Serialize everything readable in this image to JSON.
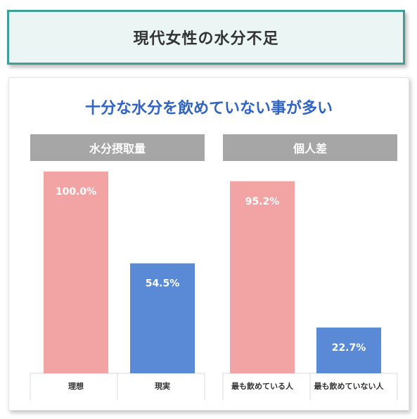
{
  "header": {
    "title": "現代女性の水分不足"
  },
  "subtitle": "十分な水分を飲めていない事が多い",
  "colors": {
    "ideal": "#f2a3a3",
    "actual": "#5a8ad6",
    "header_border": "#3e9e98",
    "subtitle": "#2f63c4"
  },
  "chart_data": [
    {
      "type": "bar",
      "title": "水分摂取量",
      "categories": [
        "理想",
        "現実"
      ],
      "values": [
        100.0,
        54.5
      ],
      "value_labels": [
        "100.0%",
        "54.5%"
      ],
      "bar_colors": [
        "#f2a3a3",
        "#5a8ad6"
      ],
      "ylim": [
        0,
        100
      ]
    },
    {
      "type": "bar",
      "title": "個人差",
      "categories": [
        "最も飲めている人",
        "最も飲めていない人"
      ],
      "values": [
        95.2,
        22.7
      ],
      "value_labels": [
        "95.2%",
        "22.7%"
      ],
      "bar_colors": [
        "#f2a3a3",
        "#5a8ad6"
      ],
      "ylim": [
        0,
        100
      ]
    }
  ]
}
